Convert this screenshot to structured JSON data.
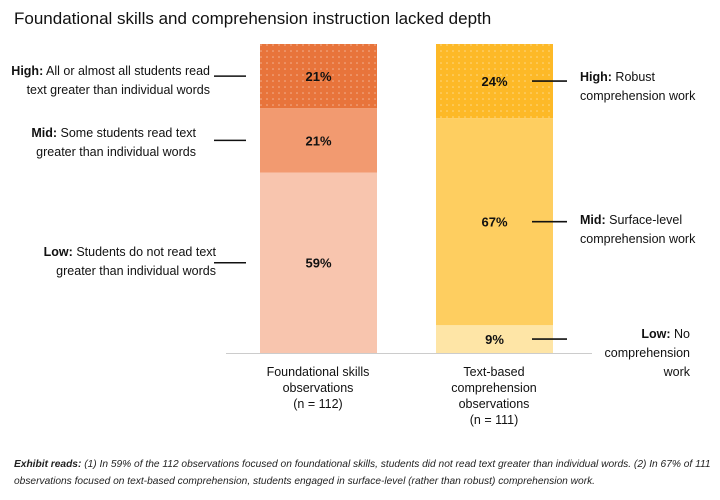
{
  "chart_data": {
    "type": "bar",
    "stacked": true,
    "title": "Foundational skills and comprehension instruction lacked depth",
    "categories": [
      {
        "label": "Foundational skills observations",
        "n_label": "(n = 112)",
        "n": 112
      },
      {
        "label": "Text-based comprehension observations",
        "n_label": "(n = 111)",
        "n": 111
      }
    ],
    "series": [
      {
        "bar": 0,
        "segments": [
          {
            "level": "Low",
            "value": 59,
            "label": "59%",
            "color": "#F8C5AE",
            "ann_bold": "Low:",
            "ann_text": "Students do not read text greater than individual words"
          },
          {
            "level": "Mid",
            "value": 21,
            "label": "21%",
            "color": "#F29A70",
            "ann_bold": "Mid:",
            "ann_text": "Some students read text greater than individual words"
          },
          {
            "level": "High",
            "value": 21,
            "label": "21%",
            "color": "#E8743B",
            "ann_bold": "High:",
            "ann_text": "All or almost all students read text greater than individual words"
          }
        ]
      },
      {
        "bar": 1,
        "segments": [
          {
            "level": "Low",
            "value": 9,
            "label": "9%",
            "color": "#FEE5A6",
            "ann_bold": "Low:",
            "ann_text": "No comprehension work"
          },
          {
            "level": "Mid",
            "value": 67,
            "label": "67%",
            "color": "#FECE60",
            "ann_bold": "Mid:",
            "ann_text": "Surface-level comprehension work"
          },
          {
            "level": "High",
            "value": 24,
            "label": "24%",
            "color": "#FDB927",
            "ann_bold": "High:",
            "ann_text": "Robust comprehension work"
          }
        ]
      }
    ],
    "ylim": [
      0,
      100
    ]
  },
  "note": {
    "bold": "Exhibit reads:",
    "text": "(1) In 59% of the 112 observations focused on foundational skills, students did not read text greater than individual words. (2) In 67% of 111 observations focused on text-based comprehension, students engaged in surface-level (rather than robust) comprehension work."
  }
}
